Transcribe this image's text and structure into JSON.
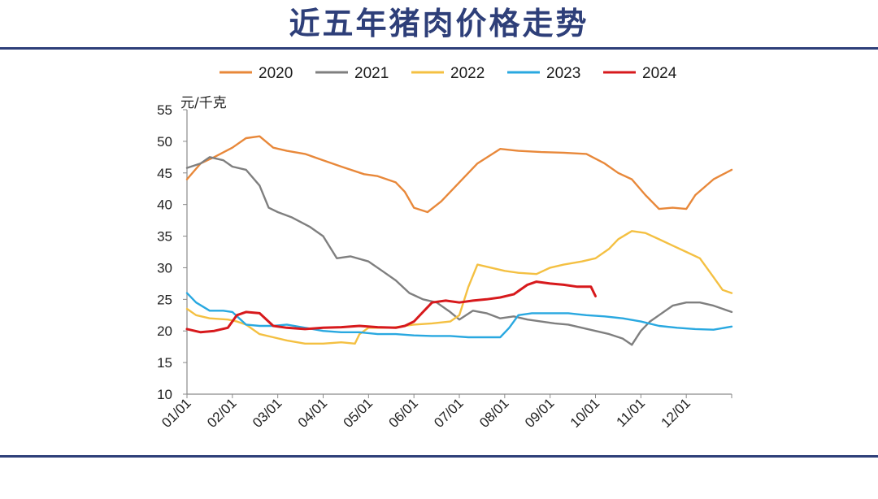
{
  "title": "近五年猪肉价格走势",
  "chart_data": {
    "type": "line",
    "ylabel": "元/千克",
    "ylim": [
      10,
      55
    ],
    "yticks": [
      55,
      50,
      45,
      40,
      35,
      30,
      25,
      20,
      15,
      10
    ],
    "xlabel": "",
    "xlim": [
      0,
      12
    ],
    "categories": [
      "01/01",
      "02/01",
      "03/01",
      "04/01",
      "05/01",
      "06/01",
      "07/01",
      "08/01",
      "09/01",
      "10/01",
      "11/01",
      "12/01"
    ],
    "grid": false,
    "legend_position": "top",
    "series": [
      {
        "name": "2020",
        "color": "#e8883a",
        "x": [
          0,
          0.3,
          0.6,
          1.0,
          1.3,
          1.6,
          1.9,
          2.2,
          2.6,
          3.0,
          3.4,
          3.9,
          4.2,
          4.6,
          4.8,
          5.0,
          5.3,
          5.6,
          6.0,
          6.4,
          6.9,
          7.3,
          7.8,
          8.3,
          8.8,
          9.2,
          9.5,
          9.8,
          10.1,
          10.4,
          10.7,
          11.0,
          11.2,
          11.6,
          12.0
        ],
        "y": [
          44,
          46.5,
          47.5,
          49,
          50.5,
          50.8,
          49,
          48.5,
          48,
          47,
          46,
          44.8,
          44.5,
          43.5,
          42,
          39.5,
          38.8,
          40.5,
          43.5,
          46.5,
          48.8,
          48.5,
          48.3,
          48.2,
          48,
          46.5,
          45,
          44,
          41.5,
          39.3,
          39.5,
          39.3,
          41.5,
          44,
          45.5
        ]
      },
      {
        "name": "2021",
        "color": "#7f7f7f",
        "x": [
          0,
          0.3,
          0.5,
          0.8,
          1.0,
          1.3,
          1.6,
          1.8,
          2.0,
          2.3,
          2.7,
          3.0,
          3.3,
          3.6,
          4.0,
          4.3,
          4.6,
          4.9,
          5.2,
          5.5,
          5.8,
          6.0,
          6.3,
          6.6,
          6.9,
          7.2,
          7.5,
          7.8,
          8.1,
          8.4,
          8.7,
          9.0,
          9.3,
          9.6,
          9.8,
          10.0,
          10.2,
          10.4,
          10.7,
          11.0,
          11.3,
          11.6,
          12.0
        ],
        "y": [
          45.8,
          46.5,
          47.5,
          47,
          46,
          45.5,
          43,
          39.5,
          38.8,
          38,
          36.5,
          35,
          31.5,
          31.8,
          31,
          29.5,
          28,
          26,
          25,
          24.5,
          23,
          21.8,
          23.2,
          22.8,
          22,
          22.3,
          21.8,
          21.5,
          21.2,
          21,
          20.5,
          20,
          19.5,
          18.8,
          17.8,
          20,
          21.5,
          22.5,
          24,
          24.5,
          24.5,
          24,
          23
        ]
      },
      {
        "name": "2022",
        "color": "#f4c042",
        "x": [
          0,
          0.2,
          0.5,
          0.9,
          1.1,
          1.3,
          1.6,
          1.9,
          2.2,
          2.6,
          3.0,
          3.4,
          3.7,
          3.8,
          4.0,
          4.5,
          5.0,
          5.4,
          5.8,
          6.0,
          6.2,
          6.4,
          6.7,
          7.0,
          7.3,
          7.7,
          8.0,
          8.3,
          8.7,
          9.0,
          9.3,
          9.5,
          9.8,
          10.1,
          10.4,
          10.7,
          11.0,
          11.3,
          11.6,
          11.8,
          12.0
        ],
        "y": [
          23.5,
          22.5,
          22,
          21.8,
          21.5,
          21,
          19.5,
          19,
          18.5,
          18,
          18,
          18.2,
          18,
          19.5,
          20.5,
          20.5,
          21,
          21.2,
          21.5,
          22.5,
          27,
          30.5,
          30,
          29.5,
          29.2,
          29,
          30,
          30.5,
          31,
          31.5,
          33,
          34.5,
          35.8,
          35.5,
          34.5,
          33.5,
          32.5,
          31.5,
          28.5,
          26.5,
          26
        ]
      },
      {
        "name": "2023",
        "color": "#29a8e0",
        "x": [
          0,
          0.2,
          0.5,
          0.8,
          1.0,
          1.3,
          1.6,
          1.9,
          2.2,
          2.6,
          3.0,
          3.4,
          3.8,
          4.2,
          4.6,
          5.0,
          5.4,
          5.8,
          6.2,
          6.6,
          6.9,
          7.1,
          7.3,
          7.6,
          8.0,
          8.4,
          8.8,
          9.2,
          9.6,
          10.0,
          10.4,
          10.8,
          11.2,
          11.6,
          12.0
        ],
        "y": [
          26,
          24.5,
          23.2,
          23.2,
          23,
          21,
          20.8,
          20.8,
          21,
          20.5,
          20,
          19.8,
          19.8,
          19.5,
          19.5,
          19.3,
          19.2,
          19.2,
          19,
          19,
          19,
          20.5,
          22.5,
          22.8,
          22.8,
          22.8,
          22.5,
          22.3,
          22,
          21.5,
          20.8,
          20.5,
          20.3,
          20.2,
          20.7
        ]
      },
      {
        "name": "2024",
        "color": "#d7191c",
        "x": [
          0,
          0.3,
          0.6,
          0.9,
          1.1,
          1.3,
          1.6,
          1.9,
          2.2,
          2.6,
          3.0,
          3.4,
          3.8,
          4.2,
          4.6,
          4.8,
          5.0,
          5.2,
          5.4,
          5.7,
          6.0,
          6.3,
          6.6,
          6.9,
          7.2,
          7.5,
          7.7,
          8.0,
          8.3,
          8.6,
          8.9,
          9.0
        ],
        "y": [
          20.3,
          19.8,
          20,
          20.5,
          22.5,
          23,
          22.8,
          20.8,
          20.5,
          20.3,
          20.5,
          20.6,
          20.8,
          20.6,
          20.5,
          20.8,
          21.5,
          23,
          24.5,
          24.8,
          24.5,
          24.8,
          25,
          25.3,
          25.8,
          27.3,
          27.8,
          27.5,
          27.3,
          27,
          27,
          25.5
        ]
      }
    ]
  }
}
